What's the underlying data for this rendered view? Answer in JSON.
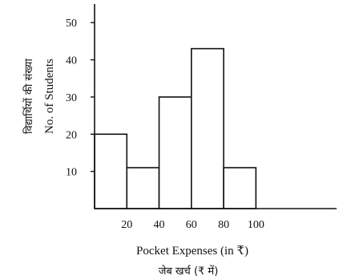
{
  "chart_data": {
    "type": "bar",
    "bins": [
      {
        "from": 0,
        "to": 20,
        "value": 20
      },
      {
        "from": 20,
        "to": 40,
        "value": 11
      },
      {
        "from": 40,
        "to": 60,
        "value": 30
      },
      {
        "from": 60,
        "to": 80,
        "value": 43
      },
      {
        "from": 80,
        "to": 100,
        "value": 11
      }
    ],
    "x_ticks": [
      "20",
      "40",
      "60",
      "80",
      "100"
    ],
    "y_ticks": [
      "10",
      "20",
      "30",
      "40",
      "50"
    ],
    "xlabel": "Pocket Expenses (in ₹)",
    "xlabel_hindi": "जेब खर्च (₹ में)",
    "ylabel": "No. of Students",
    "ylabel_hindi": "विद्यार्थियों की संख्या",
    "xlim": [
      0,
      150
    ],
    "ylim": [
      0,
      55
    ],
    "grid": false,
    "bar_fill": "#ffffff",
    "bar_stroke": "#111111"
  }
}
